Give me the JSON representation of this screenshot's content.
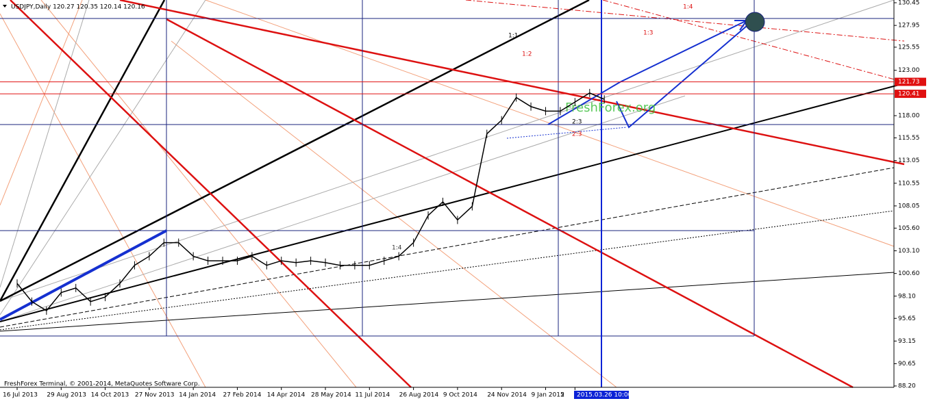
{
  "chart_data": {
    "type": "line",
    "title": "USDJPY,Daily  120.27 120.35 120.14 120.16",
    "copyright": "FreshForex Terminal, © 2001-2014, MetaQuotes Software Corp.",
    "watermark": "FreshForex.org",
    "cursor_label": "2015.03.26 10:00",
    "categories": [
      "16 Jul 2013",
      null,
      null,
      "29 Aug 2013",
      null,
      null,
      "14 Oct 2013",
      null,
      null,
      "27 Nov 2013",
      null,
      null,
      "14 Jan 2014",
      null,
      null,
      "27 Feb 2014",
      null,
      null,
      "14 Apr 2014",
      null,
      null,
      "28 May 2014",
      null,
      null,
      "11 Jul 2014",
      null,
      null,
      "26 Aug 2014",
      null,
      null,
      "9 Oct 2014",
      null,
      null,
      "24 Nov 2014",
      null,
      null,
      "9 Jan 2015",
      null,
      "2",
      null,
      null
    ],
    "series": [
      {
        "name": "USDJPY",
        "color": "#000000",
        "values": [
          99.5,
          97.5,
          96.5,
          98.5,
          99,
          97.5,
          98,
          99.5,
          101.5,
          102.5,
          104,
          104,
          102.5,
          102,
          102,
          102,
          102.5,
          101.5,
          102,
          101.8,
          102,
          101.8,
          101.5,
          101.5,
          101.5,
          102,
          102.5,
          104,
          107,
          108.5,
          106.5,
          108,
          116,
          117.5,
          120,
          119,
          118.5,
          118.5,
          119.5,
          120.5,
          119.8
        ]
      }
    ],
    "ylim": [
      88.2,
      130.45
    ],
    "yticks": [
      130.45,
      127.95,
      125.55,
      {
        "value": 123,
        "label": "123.00"
      },
      {
        "value": 118,
        "label": "118.00"
      },
      115.55,
      113.05,
      110.55,
      108.05,
      {
        "value": 105.6,
        "label": "105.60"
      },
      {
        "value": 103.1,
        "label": "103.10"
      },
      {
        "value": 100.6,
        "label": "100.60"
      },
      {
        "value": 98.1,
        "label": "98.10"
      },
      95.65,
      93.15,
      90.65,
      {
        "value": 88.2,
        "label": "88.20"
      }
    ],
    "price_levels": [
      121.73,
      120.41
    ],
    "level_color": "#e01010",
    "annotations": [
      "1:1",
      "1:2",
      "1:3",
      "1:4",
      "2:3",
      "2:3",
      "1:4"
    ]
  }
}
